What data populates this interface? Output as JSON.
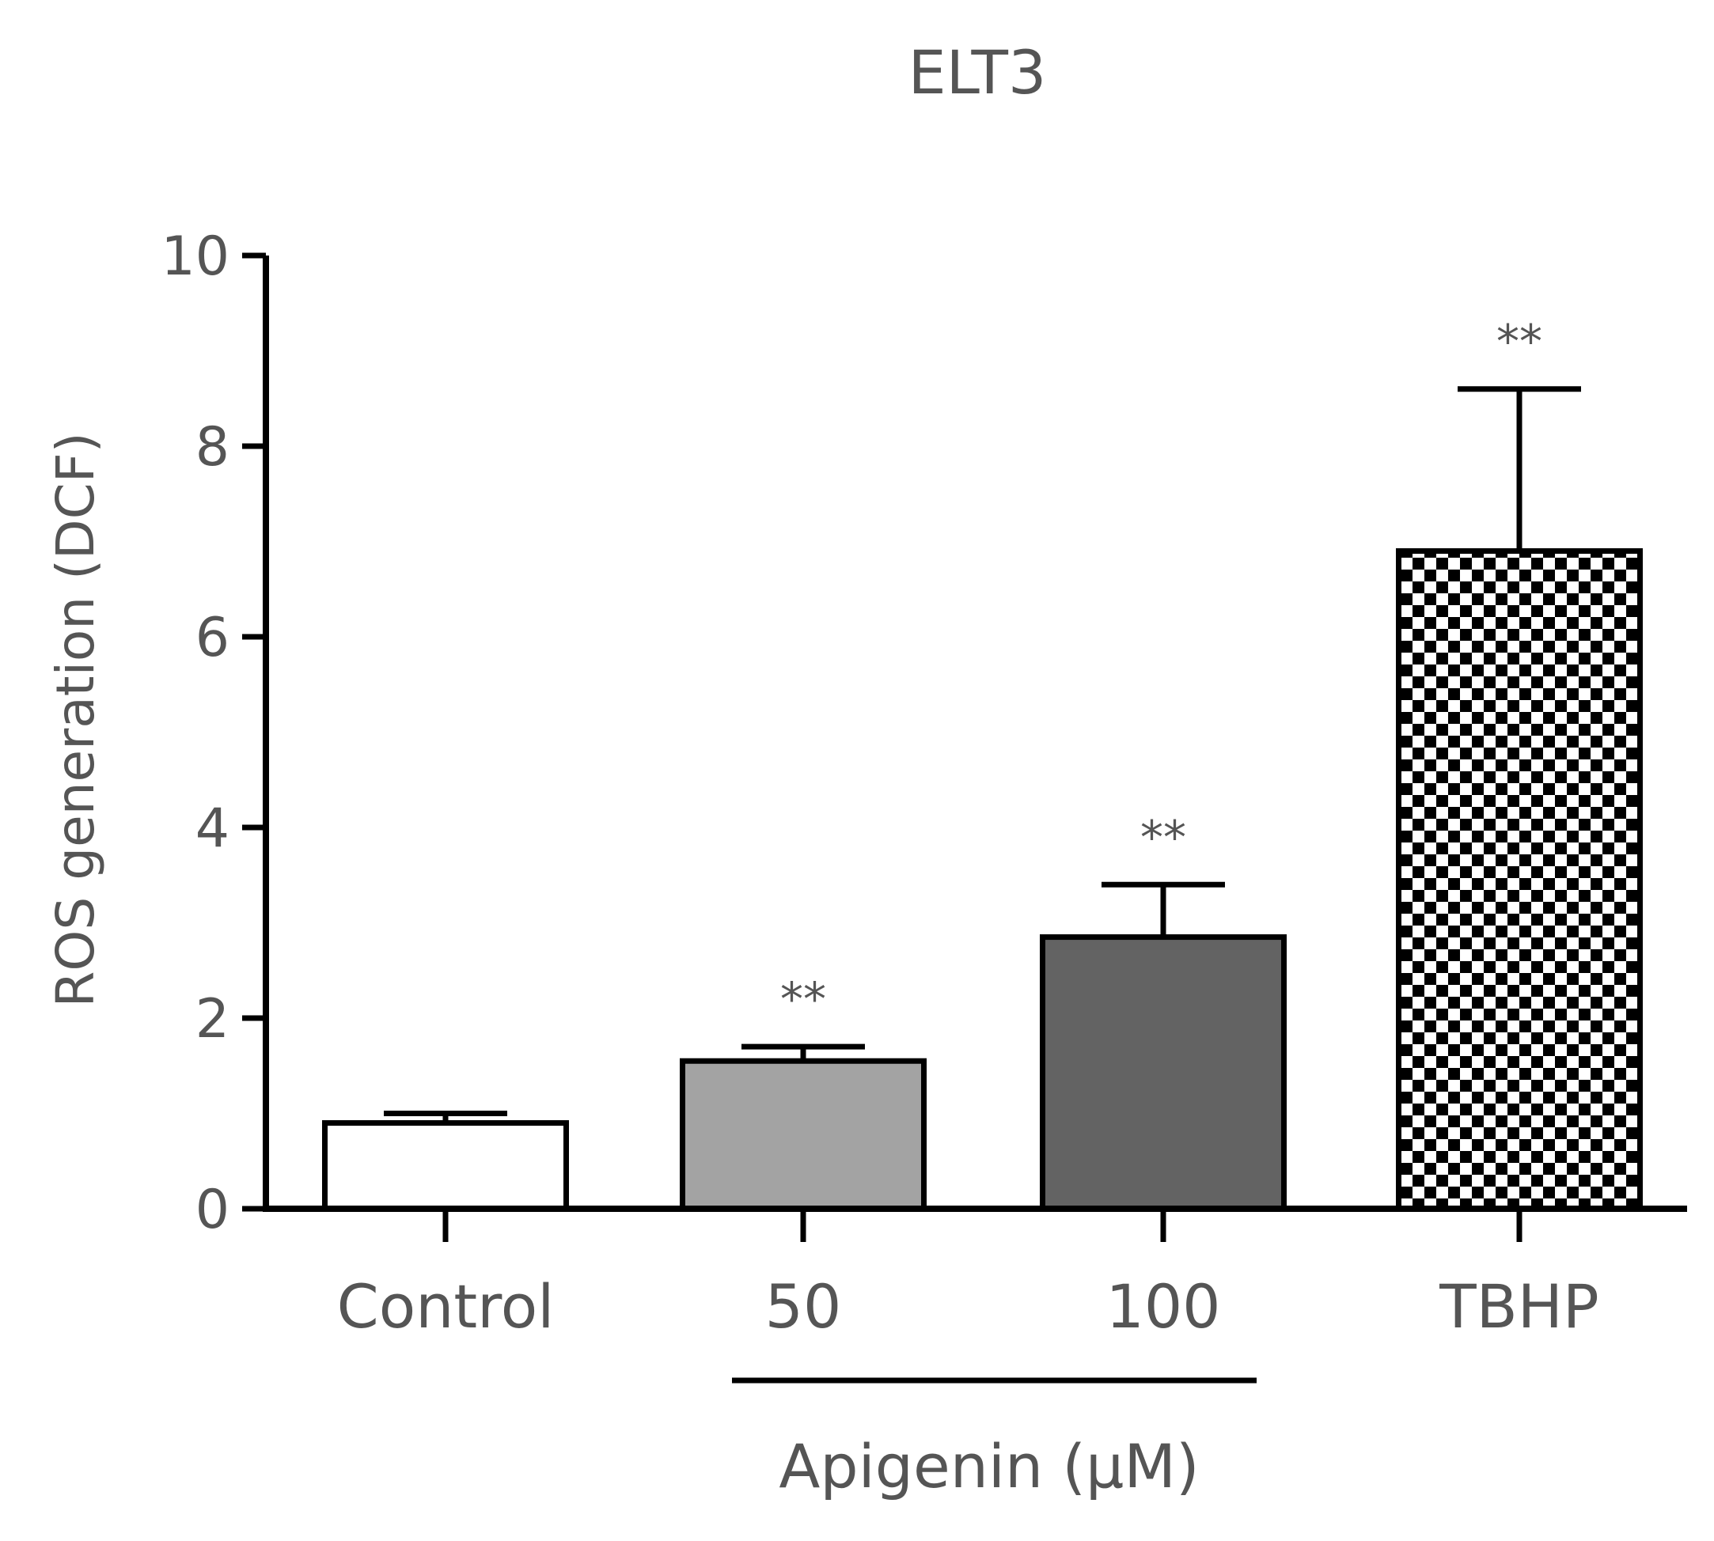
{
  "chart_data": {
    "type": "bar",
    "title": "ELT3",
    "ylabel": "ROS generation (DCF)",
    "xlabel": "",
    "group_label": "Apigenin (µM)",
    "ylim": [
      0,
      10
    ],
    "yticks": [
      0,
      2,
      4,
      6,
      8,
      10
    ],
    "categories": [
      "Control",
      "50",
      "100",
      "TBHP"
    ],
    "values": [
      0.9,
      1.55,
      2.85,
      6.9
    ],
    "errors": [
      0.1,
      0.15,
      0.55,
      1.7
    ],
    "significance": [
      "",
      "**",
      "**",
      "**"
    ],
    "fills": [
      "#ffffff",
      "#a3a3a3",
      "#636363",
      "checkerboard"
    ],
    "grid": false,
    "legend": "none"
  }
}
